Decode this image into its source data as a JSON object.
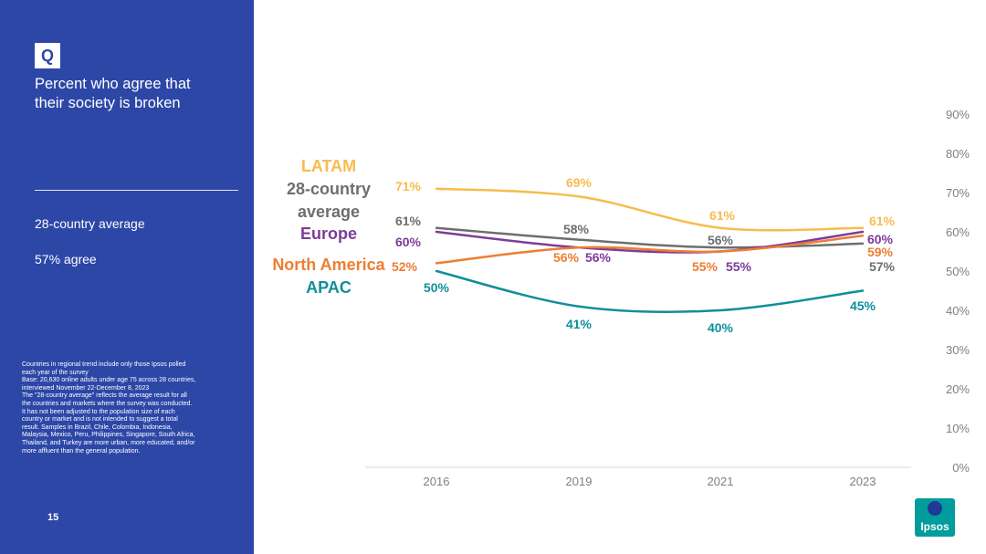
{
  "sidebar": {
    "q_badge": "Q",
    "question_line1": "Percent who agree that",
    "question_line2": "their society is broken",
    "avg_label": "28-country average",
    "avg_value": "57% agree",
    "footnote_lines": [
      "Countries in regional trend include only those Ipsos polled",
      "each year of the survey",
      "Base: 20,630 online adults under age 75 across 28 countries,",
      "interviewed November 22-December 8, 2023",
      "The \"28-country average\" reflects the average result for all",
      "the countries and markets where the survey was conducted.",
      "It has not been adjusted to the population size of each",
      "country or market and is not intended to suggest a total",
      "result. Samples in Brazil, Chile, Colombia, Indonesia,",
      "Malaysia, Mexico, Peru, Philippines, Singapore, South Africa,",
      "Thailand, and Turkey are more urban, more educated, and/or",
      "more affluent than the general population."
    ],
    "page_number": "15"
  },
  "logo": {
    "text": "Ipsos"
  },
  "colors": {
    "sidebar_bg": "#2d47a7",
    "latam": "#f7bc4f",
    "avg": "#6e6e6e",
    "europe": "#7d3c98",
    "north_america": "#ee7d32",
    "apac": "#0f8f99",
    "logo": "#009d9c"
  },
  "chart_data": {
    "type": "line",
    "x": [
      "2016",
      "2019",
      "2021",
      "2023"
    ],
    "ylim": [
      0,
      90
    ],
    "yticks": [
      "0%",
      "10%",
      "20%",
      "30%",
      "40%",
      "50%",
      "60%",
      "70%",
      "80%",
      "90%"
    ],
    "grid": false,
    "legend_position": "left",
    "series": [
      {
        "name": "LATAM",
        "key": "latam",
        "values": [
          71,
          69,
          61,
          61
        ],
        "labels": [
          "71%",
          "69%",
          "61%",
          "61%"
        ]
      },
      {
        "name": "28-country average",
        "key": "avg",
        "values": [
          61,
          58,
          56,
          57
        ],
        "labels": [
          "61%",
          "58%",
          "56%",
          "57%"
        ]
      },
      {
        "name": "Europe",
        "key": "europe",
        "values": [
          60,
          56,
          55,
          60
        ],
        "labels": [
          "60%",
          "56%",
          "55%",
          "60%"
        ]
      },
      {
        "name": "North America",
        "key": "north_america",
        "values": [
          52,
          56,
          55,
          59
        ],
        "labels": [
          "52%",
          "56%",
          "55%",
          "59%"
        ]
      },
      {
        "name": "APAC",
        "key": "apac",
        "values": [
          50,
          41,
          40,
          45
        ],
        "labels": [
          "50%",
          "41%",
          "40%",
          "45%"
        ]
      }
    ],
    "legend_lines": {
      "avg": [
        "28-country",
        "average"
      ]
    }
  }
}
